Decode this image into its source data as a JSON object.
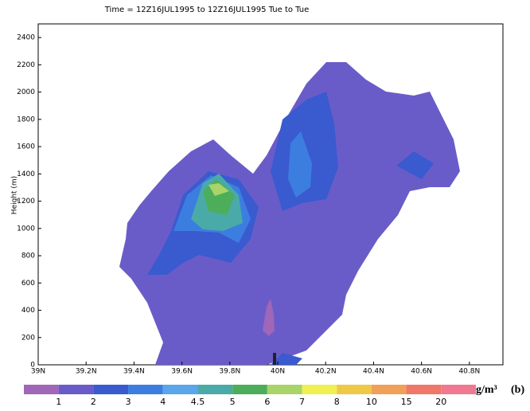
{
  "chart_data": {
    "type": "contour",
    "title": "Time = 12Z16JUL1995 to 12Z16JUL1995  Tue to Tue",
    "y_label": "Height (m)",
    "xlim": [
      39,
      40.94
    ],
    "xticks": [
      {
        "value": 39,
        "label": "39N"
      },
      {
        "value": 39.2,
        "label": "39.2N"
      },
      {
        "value": 39.4,
        "label": "39.4N"
      },
      {
        "value": 39.6,
        "label": "39.6N"
      },
      {
        "value": 39.8,
        "label": "39.8N"
      },
      {
        "value": 40,
        "label": "40N"
      },
      {
        "value": 40.2,
        "label": "40.2N"
      },
      {
        "value": 40.4,
        "label": "40.4N"
      },
      {
        "value": 40.6,
        "label": "40.6N"
      },
      {
        "value": 40.8,
        "label": "40.8N"
      }
    ],
    "ylim": [
      0,
      2500
    ],
    "yticks": [
      0,
      200,
      400,
      600,
      800,
      1000,
      1200,
      1400,
      1600,
      1800,
      2000,
      2200,
      2400
    ],
    "colorbar": {
      "levels": [
        1,
        2,
        3,
        4,
        4.5,
        5,
        6,
        7,
        8,
        10,
        15,
        20
      ],
      "colors": [
        "#a066b8",
        "#6a5cc8",
        "#3a5ad0",
        "#3c7ee0",
        "#5aa6ea",
        "#4aaaa8",
        "#4cae5a",
        "#a8d468",
        "#f0f050",
        "#f0c848",
        "#f0a058",
        "#f07868",
        "#f07890"
      ],
      "unit": "g/m³"
    },
    "panel_label": "(b)"
  }
}
